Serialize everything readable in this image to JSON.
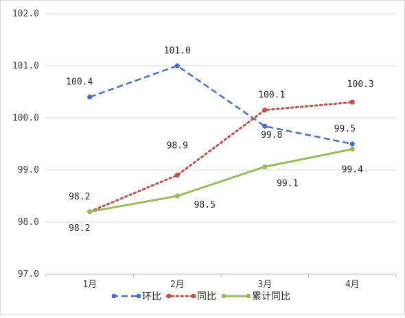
{
  "chart_data": {
    "type": "line",
    "categories": [
      "1月",
      "2月",
      "3月",
      "4月"
    ],
    "ylim": [
      97.0,
      102.0
    ],
    "yticks": [
      "97.0",
      "98.0",
      "99.0",
      "100.0",
      "101.0",
      "102.0"
    ],
    "grid": true,
    "legend_position": "bottom",
    "series": [
      {
        "name": "环比",
        "values": [
          100.4,
          101.0,
          99.84,
          99.5
        ],
        "labels": [
          "100.4",
          "101.0",
          "99.8",
          "99.5"
        ],
        "color": "#4472c4",
        "style": "dashed"
      },
      {
        "name": "同比",
        "values": [
          98.2,
          98.9,
          100.15,
          100.3
        ],
        "labels": [
          "98.2",
          "98.9",
          "100.1",
          "100.3"
        ],
        "color": "#c0504d",
        "style": "dotted"
      },
      {
        "name": "累计同比",
        "values": [
          98.2,
          98.5,
          99.06,
          99.4
        ],
        "labels": [
          "98.2",
          "98.5",
          "99.1",
          "99.4"
        ],
        "color": "#9bbb59",
        "style": "solid"
      }
    ]
  }
}
